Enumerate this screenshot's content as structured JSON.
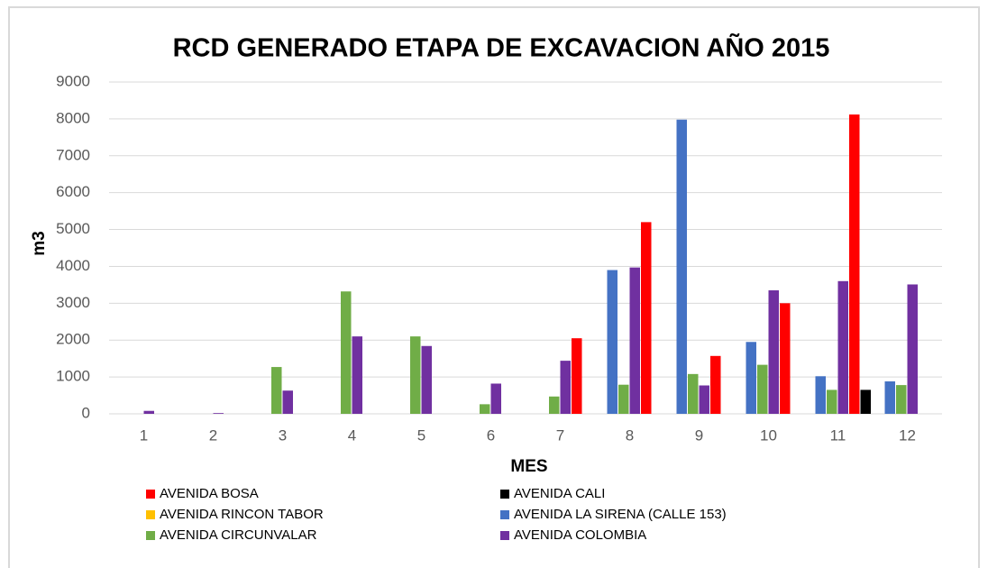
{
  "chart_data": {
    "type": "bar",
    "title": "RCD GENERADO ETAPA DE EXCAVACION AÑO 2015",
    "x_label": "MES",
    "y_label": "m3",
    "categories": [
      "1",
      "2",
      "3",
      "4",
      "5",
      "6",
      "7",
      "8",
      "9",
      "10",
      "11",
      "12"
    ],
    "series": [
      {
        "name": "AVENIDA BOSA",
        "color": "#ff0000",
        "values": [
          0,
          0,
          0,
          0,
          0,
          0,
          2050,
          5200,
          1570,
          3000,
          8120,
          0
        ]
      },
      {
        "name": "AVENIDA CALI",
        "color": "#000000",
        "values": [
          0,
          0,
          0,
          0,
          0,
          0,
          0,
          0,
          0,
          0,
          650,
          0
        ]
      },
      {
        "name": "AVENIDA RINCON TABOR",
        "color": "#ffc000",
        "values": [
          0,
          0,
          0,
          0,
          0,
          0,
          0,
          0,
          0,
          0,
          0,
          0
        ]
      },
      {
        "name": "AVENIDA LA SIRENA (CALLE 153)",
        "color": "#4472c4",
        "values": [
          0,
          0,
          0,
          0,
          0,
          0,
          0,
          3900,
          7980,
          1950,
          1020,
          880
        ]
      },
      {
        "name": "AVENIDA CIRCUNVALAR",
        "color": "#70ad47",
        "values": [
          0,
          0,
          1270,
          3320,
          2100,
          260,
          470,
          790,
          1080,
          1330,
          650,
          780
        ]
      },
      {
        "name": "AVENIDA COLOMBIA",
        "color": "#7030a0",
        "values": [
          80,
          20,
          630,
          2100,
          1840,
          820,
          1440,
          3970,
          770,
          3350,
          3600,
          3510
        ]
      }
    ],
    "ylim": [
      0,
      9000
    ],
    "yticks": [
      0,
      1000,
      2000,
      3000,
      4000,
      5000,
      6000,
      7000,
      8000,
      9000
    ],
    "grid": true,
    "legend": "bottom"
  }
}
